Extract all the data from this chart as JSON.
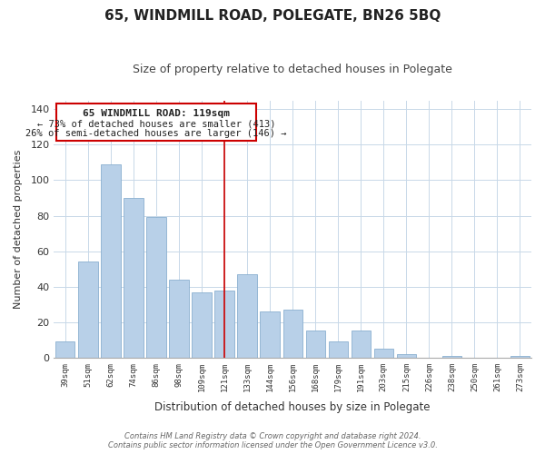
{
  "title": "65, WINDMILL ROAD, POLEGATE, BN26 5BQ",
  "subtitle": "Size of property relative to detached houses in Polegate",
  "xlabel": "Distribution of detached houses by size in Polegate",
  "ylabel": "Number of detached properties",
  "categories": [
    "39sqm",
    "51sqm",
    "62sqm",
    "74sqm",
    "86sqm",
    "98sqm",
    "109sqm",
    "121sqm",
    "133sqm",
    "144sqm",
    "156sqm",
    "168sqm",
    "179sqm",
    "191sqm",
    "203sqm",
    "215sqm",
    "226sqm",
    "238sqm",
    "250sqm",
    "261sqm",
    "273sqm"
  ],
  "values": [
    9,
    54,
    109,
    90,
    79,
    44,
    37,
    38,
    47,
    26,
    27,
    15,
    9,
    15,
    5,
    2,
    0,
    1,
    0,
    0,
    1
  ],
  "bar_color": "#b8d0e8",
  "bar_edge_color": "#8ab0d0",
  "vline_color": "#cc0000",
  "annotation_title": "65 WINDMILL ROAD: 119sqm",
  "annotation_line1": "← 73% of detached houses are smaller (413)",
  "annotation_line2": "26% of semi-detached houses are larger (146) →",
  "annotation_box_color": "#ffffff",
  "annotation_box_edge": "#cc0000",
  "ylim": [
    0,
    145
  ],
  "yticks": [
    0,
    20,
    40,
    60,
    80,
    100,
    120,
    140
  ],
  "footer1": "Contains HM Land Registry data © Crown copyright and database right 2024.",
  "footer2": "Contains public sector information licensed under the Open Government Licence v3.0.",
  "bg_color": "#ffffff",
  "grid_color": "#c8d8e8"
}
